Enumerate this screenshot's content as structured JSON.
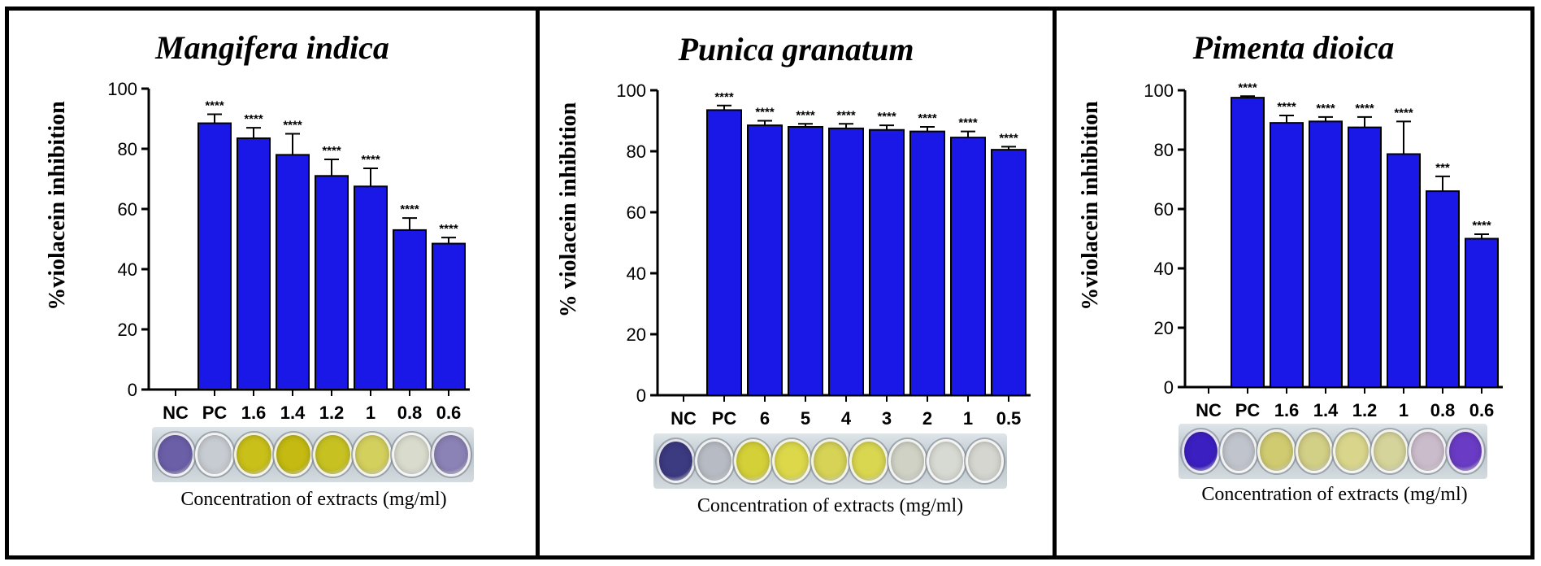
{
  "chart_data": [
    {
      "type": "bar",
      "title": "Mangifera indica",
      "xlabel": "Concentration of extracts (mg/ml)",
      "ylabel": "%violacein inhibition",
      "ylim": [
        0,
        100
      ],
      "yticks": [
        0,
        20,
        40,
        60,
        80,
        100
      ],
      "categories": [
        "NC",
        "PC",
        "1.6",
        "1.4",
        "1.2",
        "1",
        "0.8",
        "0.6"
      ],
      "values": [
        0,
        88.5,
        83.5,
        78,
        71,
        67.5,
        53,
        48.5
      ],
      "errors": [
        0,
        3,
        3.5,
        7,
        5.5,
        6,
        4,
        2
      ],
      "annotations": [
        "",
        "****",
        "****",
        "****",
        "****",
        "****",
        "****",
        "****"
      ],
      "bar_color": "#1a18e6",
      "well_colors": [
        "#6b5fa8",
        "#c7ccd2",
        "#c9c01a",
        "#c4ba12",
        "#c7c222",
        "#d3d05e",
        "#d9dccd",
        "#8b82b5"
      ]
    },
    {
      "type": "bar",
      "title": "Punica granatum",
      "xlabel": "Concentration of extracts (mg/ml)",
      "ylabel": "% violacein inhibition",
      "ylim": [
        0,
        100
      ],
      "yticks": [
        0,
        20,
        40,
        60,
        80,
        100
      ],
      "categories": [
        "NC",
        "PC",
        "6",
        "5",
        "4",
        "3",
        "2",
        "1",
        "0.5"
      ],
      "values": [
        0,
        93.5,
        88.5,
        88,
        87.5,
        87,
        86.5,
        84.5,
        80.5
      ],
      "errors": [
        0,
        1.5,
        1.5,
        1,
        1.5,
        1.5,
        1.5,
        2,
        1
      ],
      "annotations": [
        "",
        "****",
        "****",
        "****",
        "****",
        "****",
        "****",
        "****",
        "****"
      ],
      "bar_color": "#1a18e6",
      "well_colors": [
        "#3c3a80",
        "#b7bcc4",
        "#d4d038",
        "#dcd84a",
        "#d6d356",
        "#d9d650",
        "#cfd2c4",
        "#d7dad2",
        "#d4d6cf"
      ]
    },
    {
      "type": "bar",
      "title": "Pimenta dioica",
      "xlabel": "Concentration of extracts (mg/ml)",
      "ylabel": "%violacein inhibition",
      "ylim": [
        0,
        100
      ],
      "yticks": [
        0,
        20,
        40,
        60,
        80,
        100
      ],
      "categories": [
        "NC",
        "PC",
        "1.6",
        "1.4",
        "1.2",
        "1",
        "0.8",
        "0.6"
      ],
      "values": [
        0,
        97.5,
        89,
        89.5,
        87.5,
        78.5,
        66,
        50
      ],
      "errors": [
        0,
        0.5,
        2.5,
        1.5,
        3.5,
        11,
        5,
        1.5
      ],
      "annotations": [
        "",
        "****",
        "****",
        "****",
        "****",
        "****",
        "***",
        "****"
      ],
      "bar_color": "#1a18e6",
      "well_colors": [
        "#3b1fc0",
        "#c0c4cc",
        "#d0cb70",
        "#d2cf86",
        "#d9d68c",
        "#d5d49a",
        "#cbbccb",
        "#6a3bc4"
      ]
    }
  ]
}
